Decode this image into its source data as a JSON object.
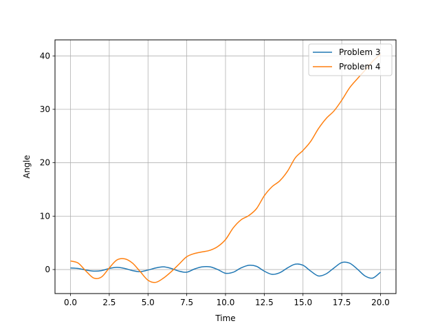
{
  "chart_data": {
    "type": "line",
    "title": "",
    "xlabel": "Time",
    "ylabel": "Angle",
    "xlim": [
      -1.0,
      21.0
    ],
    "ylim": [
      -4.5,
      43.0
    ],
    "xticks": [
      0.0,
      2.5,
      5.0,
      7.5,
      10.0,
      12.5,
      15.0,
      17.5,
      20.0
    ],
    "xtick_labels": [
      "0.0",
      "2.5",
      "5.0",
      "7.5",
      "10.0",
      "12.5",
      "15.0",
      "17.5",
      "20.0"
    ],
    "yticks": [
      0,
      10,
      20,
      30,
      40
    ],
    "ytick_labels": [
      "0",
      "10",
      "20",
      "30",
      "40"
    ],
    "grid": true,
    "legend_position": "top-right",
    "series": [
      {
        "name": "Problem 3",
        "color": "#1f77b4",
        "x": [
          0.0,
          0.5,
          1.0,
          1.5,
          2.0,
          2.5,
          3.0,
          3.5,
          4.0,
          4.5,
          5.0,
          5.5,
          6.0,
          6.5,
          7.0,
          7.5,
          8.0,
          8.5,
          9.0,
          9.5,
          10.0,
          10.5,
          11.0,
          11.5,
          12.0,
          12.5,
          13.0,
          13.5,
          14.0,
          14.5,
          15.0,
          15.5,
          16.0,
          16.5,
          17.0,
          17.5,
          18.0,
          18.5,
          19.0,
          19.5,
          20.0
        ],
        "values": [
          0.3,
          0.2,
          -0.1,
          -0.3,
          -0.2,
          0.2,
          0.4,
          0.2,
          -0.2,
          -0.4,
          -0.1,
          0.3,
          0.5,
          0.2,
          -0.3,
          -0.5,
          0.1,
          0.5,
          0.5,
          0.0,
          -0.7,
          -0.5,
          0.3,
          0.8,
          0.6,
          -0.3,
          -0.9,
          -0.6,
          0.3,
          1.0,
          0.8,
          -0.3,
          -1.2,
          -0.8,
          0.3,
          1.3,
          1.2,
          0.1,
          -1.2,
          -1.6,
          -0.5
        ]
      },
      {
        "name": "Problem 4",
        "color": "#ff7f0e",
        "x": [
          0.0,
          0.5,
          1.0,
          1.5,
          2.0,
          2.5,
          3.0,
          3.5,
          4.0,
          4.5,
          5.0,
          5.5,
          6.0,
          6.5,
          7.0,
          7.5,
          8.0,
          8.5,
          9.0,
          9.5,
          10.0,
          10.5,
          11.0,
          11.5,
          12.0,
          12.5,
          13.0,
          13.5,
          14.0,
          14.5,
          15.0,
          15.5,
          16.0,
          16.5,
          17.0,
          17.5,
          18.0,
          18.5,
          19.0,
          19.5,
          20.0
        ],
        "values": [
          1.6,
          1.2,
          -0.3,
          -1.6,
          -1.4,
          0.3,
          1.8,
          2.0,
          1.2,
          -0.4,
          -2.0,
          -2.4,
          -1.6,
          -0.4,
          1.0,
          2.4,
          3.0,
          3.3,
          3.6,
          4.3,
          5.6,
          7.8,
          9.3,
          10.1,
          11.4,
          13.8,
          15.5,
          16.6,
          18.4,
          20.9,
          22.3,
          24.0,
          26.4,
          28.3,
          29.7,
          31.7,
          34.0,
          35.7,
          37.3,
          39.0,
          40.3
        ]
      }
    ]
  }
}
